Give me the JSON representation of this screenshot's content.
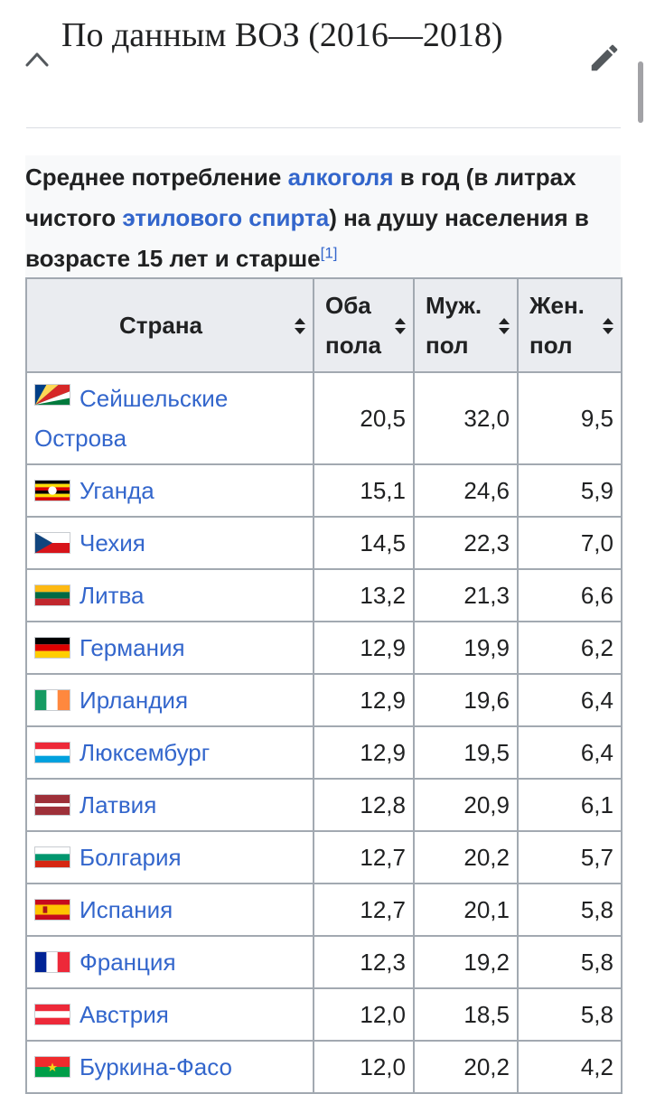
{
  "section": {
    "title": "По данным ВОЗ (2016—2018)"
  },
  "caption": {
    "part1": "Среднее потребление ",
    "link1": "алкоголя",
    "part2": " в год (в литрах чистого ",
    "link2": "этилового спирта",
    "part3": ") на душу населения в возрасте 15 лет и старше",
    "footnote": "[1]"
  },
  "table": {
    "headers": {
      "country": "Страна",
      "both_line1": "Оба",
      "both_line2": "пола",
      "male_line1": "Муж.",
      "male_line2": "пол",
      "female_line1": "Жен.",
      "female_line2": "пол"
    },
    "rows": [
      {
        "country_line1": "Сейшельские",
        "country_line2": "Острова",
        "both": "20,5",
        "male": "32,0",
        "female": "9,5",
        "flag_icon": "seychelles-flag-icon"
      },
      {
        "country": "Уганда",
        "both": "15,1",
        "male": "24,6",
        "female": "5,9",
        "flag_icon": "uganda-flag-icon"
      },
      {
        "country": "Чехия",
        "both": "14,5",
        "male": "22,3",
        "female": "7,0",
        "flag_icon": "czech-flag-icon"
      },
      {
        "country": "Литва",
        "both": "13,2",
        "male": "21,3",
        "female": "6,6",
        "flag_icon": "lithuania-flag-icon"
      },
      {
        "country": "Германия",
        "both": "12,9",
        "male": "19,9",
        "female": "6,2",
        "flag_icon": "germany-flag-icon"
      },
      {
        "country": "Ирландия",
        "both": "12,9",
        "male": "19,6",
        "female": "6,4",
        "flag_icon": "ireland-flag-icon"
      },
      {
        "country": "Люксембург",
        "both": "12,9",
        "male": "19,5",
        "female": "6,4",
        "flag_icon": "luxembourg-flag-icon"
      },
      {
        "country": "Латвия",
        "both": "12,8",
        "male": "20,9",
        "female": "6,1",
        "flag_icon": "latvia-flag-icon"
      },
      {
        "country": "Болгария",
        "both": "12,7",
        "male": "20,2",
        "female": "5,7",
        "flag_icon": "bulgaria-flag-icon"
      },
      {
        "country": "Испания",
        "both": "12,7",
        "male": "20,1",
        "female": "5,8",
        "flag_icon": "spain-flag-icon"
      },
      {
        "country": "Франция",
        "both": "12,3",
        "male": "19,2",
        "female": "5,8",
        "flag_icon": "france-flag-icon"
      },
      {
        "country": "Австрия",
        "both": "12,0",
        "male": "18,5",
        "female": "5,8",
        "flag_icon": "austria-flag-icon"
      },
      {
        "country": "Буркина-Фасо",
        "both": "12,0",
        "male": "20,2",
        "female": "4,2",
        "flag_icon": "burkina-faso-flag-icon"
      }
    ]
  },
  "colors": {
    "link": "#3366cc",
    "header_bg": "#eaecf0",
    "border": "#a2a9b1",
    "caption_bg": "#f8f9fa"
  },
  "icons": {
    "collapse": "chevron-up-icon",
    "edit": "pencil-icon",
    "sort": "sort-icon"
  }
}
